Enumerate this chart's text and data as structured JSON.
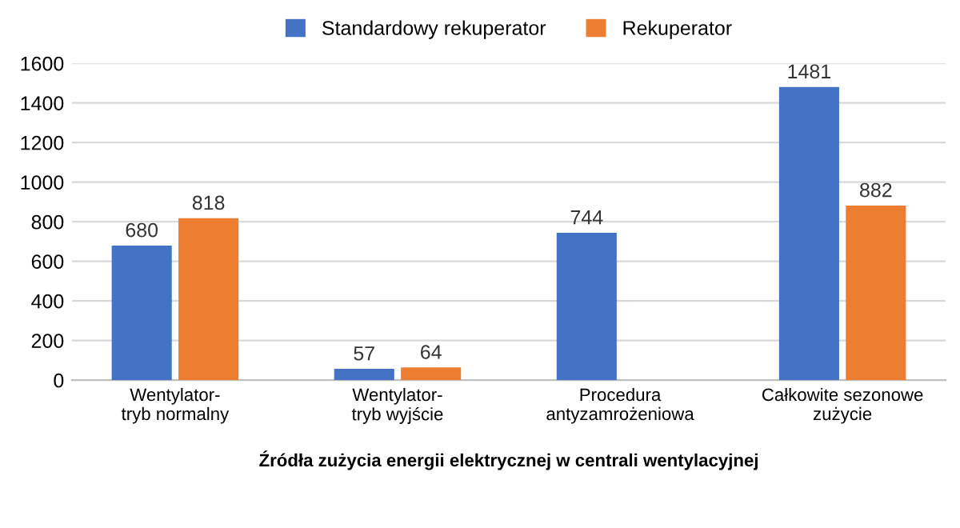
{
  "chart_data": {
    "type": "bar",
    "xlabel": "Źródła zużycia energii elektrycznej w centrali wentylacyjnej",
    "categories": [
      "Wentylator-\ntryb normalny",
      "Wentylator-\ntryb wyjście",
      "Procedura\nantyzamrożeniowa",
      "Całkowite sezonowe\nzużycie"
    ],
    "series": [
      {
        "name": "Standardowy rekuperator",
        "color": "#4472c4",
        "values": [
          680,
          57,
          744,
          1481
        ]
      },
      {
        "name": "Rekuperator",
        "color": "#ed7d31",
        "values": [
          818,
          64,
          null,
          882
        ]
      }
    ],
    "ylim": [
      0,
      1600
    ],
    "yticks": [
      0,
      200,
      400,
      600,
      800,
      1000,
      1200,
      1400,
      1600
    ],
    "grid": "y",
    "legend": "top",
    "data_labels": true
  }
}
